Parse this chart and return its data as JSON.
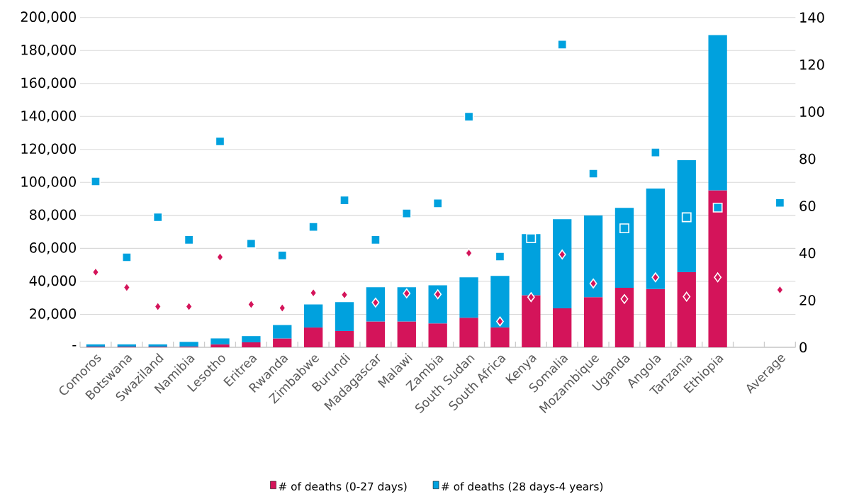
{
  "chart_data": {
    "type": "bar",
    "stacked": true,
    "categories": [
      "Comoros",
      "Botswana",
      "Swaziland",
      "Namibia",
      "Lesotho",
      "Eritrea",
      "Rwanda",
      "Zimbabwe",
      "Burundi",
      "Madagascar",
      "Malawi",
      "Zambia",
      "South Sudan",
      "South Africa",
      "Kenya",
      "Somalia",
      "Mozambique",
      "Uganda",
      "Angola",
      "Tanzania",
      "Ethiopia",
      null,
      "Average"
    ],
    "series": [
      {
        "name": "# of deaths (0-27 days)",
        "color": "#d4145a",
        "values": [
          400,
          400,
          400,
          500,
          1800,
          3000,
          5400,
          12000,
          9900,
          15700,
          15700,
          14500,
          17900,
          12000,
          31600,
          23600,
          30400,
          36100,
          35300,
          45600,
          95200,
          null,
          null
        ]
      },
      {
        "name": "# of deaths (28 days-4 years)",
        "color": "#00a1de",
        "values": [
          1400,
          1400,
          1400,
          2800,
          3600,
          3800,
          8100,
          14000,
          17500,
          20700,
          20700,
          23100,
          24500,
          31300,
          37100,
          54100,
          49500,
          48500,
          61000,
          67900,
          94100,
          null,
          null
        ]
      },
      {
        "type": "scatter",
        "axis": "y2",
        "color": "#d4145a",
        "marker": "diamond",
        "values": [
          31.9,
          25.4,
          17.3,
          17.3,
          38.3,
          18.2,
          16.7,
          23.1,
          22.3,
          19.0,
          22.9,
          22.5,
          40.0,
          11.0,
          21.3,
          39.4,
          27.1,
          20.5,
          29.7,
          21.5,
          29.7,
          null,
          24.4
        ]
      },
      {
        "type": "scatter",
        "axis": "y2",
        "color": "#00a1de",
        "marker": "square",
        "values": [
          70.4,
          38.2,
          55.2,
          45.6,
          87.4,
          44.0,
          39.0,
          51.1,
          62.4,
          45.6,
          56.8,
          61.1,
          97.9,
          38.5,
          46.3,
          128.5,
          73.7,
          50.5,
          82.7,
          55.2,
          59.3,
          null,
          61.3
        ]
      }
    ],
    "ylim": [
      0,
      200000
    ],
    "yticks": [
      {
        "value": 0,
        "label": "-"
      },
      {
        "value": 20000,
        "label": "20,000"
      },
      {
        "value": 40000,
        "label": "40,000"
      },
      {
        "value": 60000,
        "label": "60,000"
      },
      {
        "value": 80000,
        "label": "80,000"
      },
      {
        "value": 100000,
        "label": "100,000"
      },
      {
        "value": 120000,
        "label": "120,000"
      },
      {
        "value": 140000,
        "label": "140,000"
      },
      {
        "value": 160000,
        "label": "160,000"
      },
      {
        "value": 180000,
        "label": "180,000"
      },
      {
        "value": 200000,
        "label": "200,000"
      }
    ],
    "y2lim": [
      0,
      140
    ],
    "y2ticks": [
      0,
      20,
      40,
      60,
      80,
      100,
      120,
      140
    ],
    "grid": "y",
    "legend": "bottom"
  }
}
